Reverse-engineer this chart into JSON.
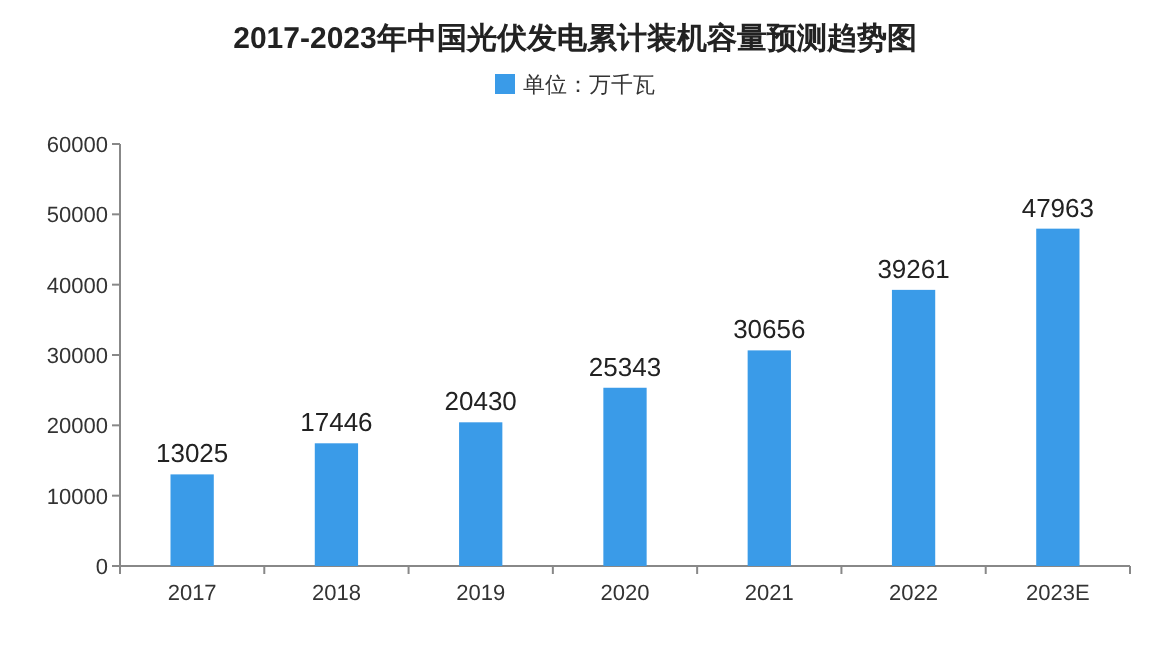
{
  "chart_data": {
    "type": "bar",
    "title": "2017-2023年中国光伏发电累计装机容量预测趋势图",
    "categories": [
      "2017",
      "2018",
      "2019",
      "2020",
      "2021",
      "2022",
      "2023E"
    ],
    "series": [
      {
        "name": "单位：万千瓦",
        "color": "#3a9be8",
        "values": [
          13025,
          17446,
          20430,
          25343,
          30656,
          39261,
          47963
        ]
      }
    ],
    "ylim": [
      0,
      60000
    ],
    "yticks": [
      0,
      10000,
      20000,
      30000,
      40000,
      50000,
      60000
    ],
    "data_labels": true,
    "legend": "top",
    "grid": false
  }
}
